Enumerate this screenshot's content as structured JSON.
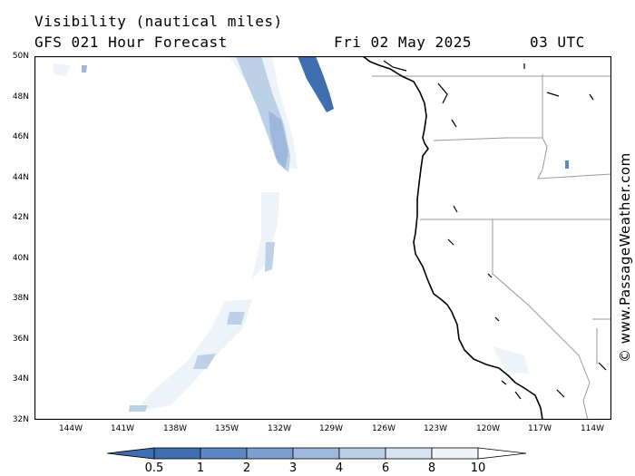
{
  "header": {
    "line1": "Visibility (nautical miles)",
    "line2": "GFS 021 Hour Forecast",
    "date": "Fri 02 May 2025",
    "time": "03 UTC"
  },
  "credit": "© www.PassageWeather.com",
  "map": {
    "lat_range": [
      32,
      50
    ],
    "lon_range": [
      -146,
      -113.5
    ],
    "lat_ticks": [
      "50N",
      "48N",
      "46N",
      "44N",
      "42N",
      "40N",
      "38N",
      "36N",
      "34N",
      "32N"
    ],
    "lon_ticks": [
      "144W",
      "141W",
      "138W",
      "135W",
      "132W",
      "129W",
      "126W",
      "123W",
      "120W",
      "117W",
      "114W"
    ]
  },
  "legend": {
    "labels": [
      "0.5",
      "1",
      "2",
      "3",
      "4",
      "6",
      "8",
      "10"
    ],
    "colors": [
      "#3f6fb1",
      "#5b86c2",
      "#7d9fd0",
      "#9db8dc",
      "#bcd0e8",
      "#d7e3f2",
      "#eef3fa"
    ]
  },
  "colors": {
    "coast": "#000000",
    "border": "#999999",
    "low_vis": "#3f6fb1"
  }
}
